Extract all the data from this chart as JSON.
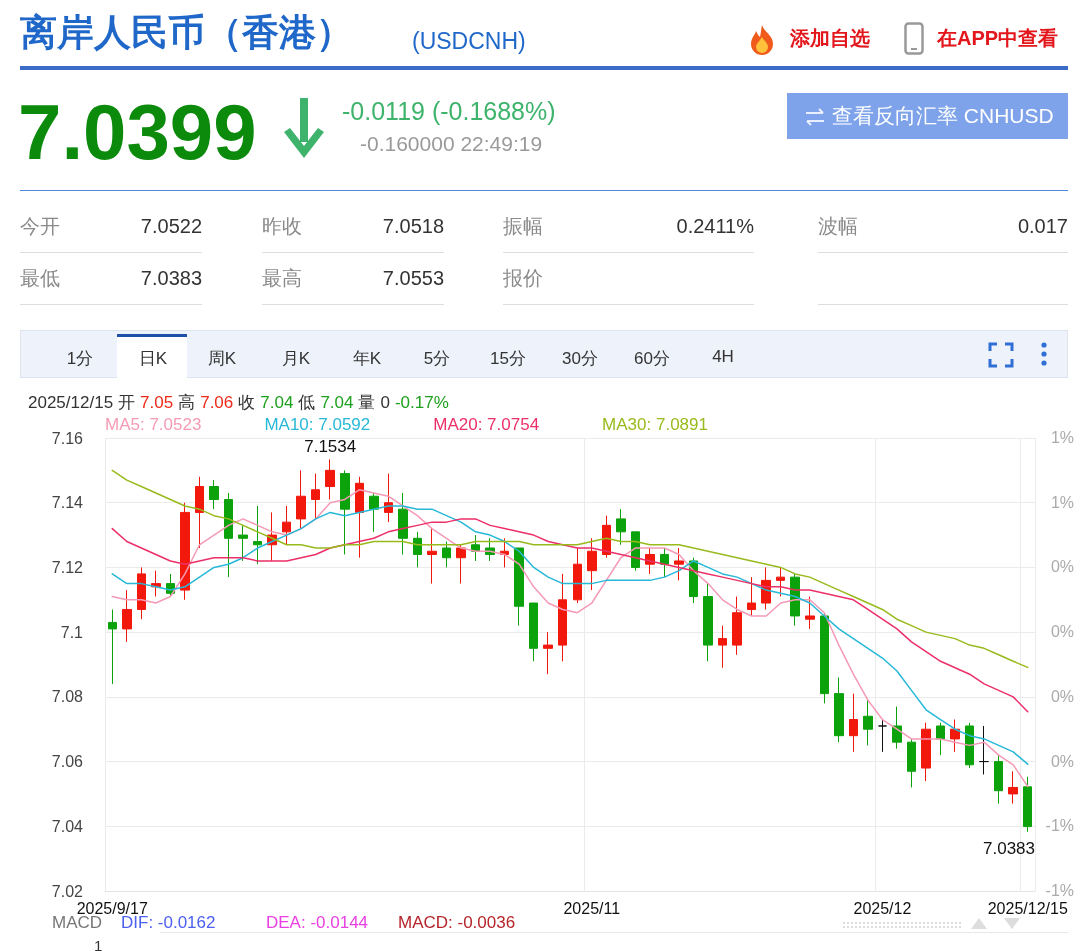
{
  "chart_data": {
    "type": "candlestick",
    "title": "离岸人民币（香港）",
    "subtitle": "(USDCNH)",
    "categories": [
      "2025/9/17",
      null,
      null,
      null,
      null,
      null,
      null,
      null,
      null,
      null,
      null,
      null,
      null,
      null,
      null,
      null,
      null,
      null,
      null,
      null,
      null,
      null,
      null,
      null,
      null,
      null,
      null,
      null,
      null,
      null,
      null,
      null,
      null,
      "2025/11",
      null,
      null,
      null,
      null,
      null,
      null,
      null,
      null,
      null,
      null,
      null,
      null,
      null,
      null,
      null,
      null,
      null,
      null,
      null,
      "2025/12",
      null,
      null,
      null,
      null,
      null,
      null,
      null,
      null,
      null,
      "2025/12/15"
    ],
    "ohlc": [
      [
        7.103,
        7.107,
        7.084,
        7.101
      ],
      [
        7.101,
        7.113,
        7.097,
        7.107
      ],
      [
        7.107,
        7.12,
        7.104,
        7.118
      ],
      [
        7.114,
        7.119,
        7.111,
        7.115
      ],
      [
        7.115,
        7.118,
        7.111,
        7.112
      ],
      [
        7.113,
        7.14,
        7.11,
        7.137
      ],
      [
        7.137,
        7.148,
        7.126,
        7.145
      ],
      [
        7.145,
        7.147,
        7.138,
        7.141
      ],
      [
        7.141,
        7.143,
        7.117,
        7.129
      ],
      [
        7.13,
        7.133,
        7.122,
        7.129
      ],
      [
        7.128,
        7.139,
        7.121,
        7.127
      ],
      [
        7.127,
        7.137,
        7.122,
        7.13
      ],
      [
        7.131,
        7.139,
        7.127,
        7.134
      ],
      [
        7.135,
        7.15,
        7.132,
        7.142
      ],
      [
        7.141,
        7.149,
        7.135,
        7.144
      ],
      [
        7.145,
        7.1534,
        7.141,
        7.15
      ],
      [
        7.149,
        7.15,
        7.124,
        7.138
      ],
      [
        7.137,
        7.148,
        7.123,
        7.146
      ],
      [
        7.142,
        7.143,
        7.131,
        7.138
      ],
      [
        7.137,
        7.149,
        7.134,
        7.14
      ],
      [
        7.138,
        7.143,
        7.124,
        7.129
      ],
      [
        7.129,
        7.131,
        7.12,
        7.124
      ],
      [
        7.124,
        7.132,
        7.115,
        7.125
      ],
      [
        7.126,
        7.128,
        7.12,
        7.123
      ],
      [
        7.123,
        7.127,
        7.115,
        7.126
      ],
      [
        7.127,
        7.13,
        7.122,
        7.125
      ],
      [
        7.126,
        7.129,
        7.122,
        7.124
      ],
      [
        7.124,
        7.129,
        7.12,
        7.125
      ],
      [
        7.126,
        7.126,
        7.102,
        7.108
      ],
      [
        7.109,
        7.109,
        7.091,
        7.095
      ],
      [
        7.095,
        7.1,
        7.087,
        7.096
      ],
      [
        7.096,
        7.118,
        7.091,
        7.11
      ],
      [
        7.11,
        7.126,
        7.109,
        7.121
      ],
      [
        7.119,
        7.129,
        7.113,
        7.125
      ],
      [
        7.124,
        7.136,
        7.123,
        7.133
      ],
      [
        7.135,
        7.138,
        7.127,
        7.131
      ],
      [
        7.131,
        7.131,
        7.119,
        7.12
      ],
      [
        7.121,
        7.126,
        7.118,
        7.124
      ],
      [
        7.124,
        7.126,
        7.117,
        7.121
      ],
      [
        7.121,
        7.126,
        7.116,
        7.122
      ],
      [
        7.122,
        7.123,
        7.109,
        7.111
      ],
      [
        7.111,
        7.115,
        7.091,
        7.096
      ],
      [
        7.096,
        7.102,
        7.089,
        7.098
      ],
      [
        7.096,
        7.111,
        7.093,
        7.106
      ],
      [
        7.107,
        7.117,
        7.105,
        7.109
      ],
      [
        7.109,
        7.12,
        7.107,
        7.116
      ],
      [
        7.116,
        7.12,
        7.111,
        7.117
      ],
      [
        7.117,
        7.118,
        7.102,
        7.105
      ],
      [
        7.104,
        7.111,
        7.101,
        7.105
      ],
      [
        7.105,
        7.106,
        7.078,
        7.081
      ],
      [
        7.081,
        7.086,
        7.066,
        7.068
      ],
      [
        7.068,
        7.081,
        7.063,
        7.073
      ],
      [
        7.074,
        7.079,
        7.065,
        7.07
      ],
      [
        7.071,
        7.073,
        7.063,
        7.071
      ],
      [
        7.071,
        7.077,
        7.064,
        7.066
      ],
      [
        7.066,
        7.067,
        7.052,
        7.057
      ],
      [
        7.058,
        7.072,
        7.054,
        7.07
      ],
      [
        7.071,
        7.072,
        7.062,
        7.067
      ],
      [
        7.067,
        7.073,
        7.063,
        7.07
      ],
      [
        7.071,
        7.072,
        7.058,
        7.059
      ],
      [
        7.06,
        7.071,
        7.056,
        7.06
      ],
      [
        7.06,
        7.062,
        7.047,
        7.051
      ],
      [
        7.05,
        7.057,
        7.047,
        7.052
      ],
      [
        7.0522,
        7.0553,
        7.0383,
        7.0399
      ]
    ],
    "colors": [
      "#0ba20b",
      "#f2180c",
      "#f2180c",
      "#f2180c",
      "#0ba20b",
      "#f2180c",
      "#f2180c",
      "#0ba20b",
      "#0ba20b",
      "#0ba20b",
      "#0ba20b",
      "#f2180c",
      "#f2180c",
      "#f2180c",
      "#f2180c",
      "#f2180c",
      "#0ba20b",
      "#f2180c",
      "#0ba20b",
      "#f2180c",
      "#0ba20b",
      "#0ba20b",
      "#f2180c",
      "#0ba20b",
      "#f2180c",
      "#0ba20b",
      "#0ba20b",
      "#f2180c",
      "#0ba20b",
      "#0ba20b",
      "#f2180c",
      "#f2180c",
      "#f2180c",
      "#f2180c",
      "#f2180c",
      "#0ba20b",
      "#0ba20b",
      "#f2180c",
      "#0ba20b",
      "#f2180c",
      "#0ba20b",
      "#0ba20b",
      "#f2180c",
      "#f2180c",
      "#f2180c",
      "#f2180c",
      "#f2180c",
      "#0ba20b",
      "#f2180c",
      "#0ba20b",
      "#0ba20b",
      "#f2180c",
      "#0ba20b",
      "#111111",
      "#0ba20b",
      "#0ba20b",
      "#f2180c",
      "#0ba20b",
      "#f2180c",
      "#0ba20b",
      "#111111",
      "#0ba20b",
      "#f2180c",
      "#0ba20b"
    ],
    "series": [
      {
        "name": "MA5: 7.0523",
        "type": "line",
        "color": "#f59ab5",
        "values": [
          7.111,
          7.11,
          7.11,
          7.109,
          7.111,
          7.118,
          7.127,
          7.13,
          7.133,
          7.135,
          7.133,
          7.131,
          7.13,
          7.132,
          7.135,
          7.14,
          7.141,
          7.144,
          7.143,
          7.142,
          7.139,
          7.136,
          7.132,
          7.129,
          7.126,
          7.125,
          7.125,
          7.124,
          7.121,
          7.114,
          7.109,
          7.107,
          7.106,
          7.109,
          7.116,
          7.123,
          7.126,
          7.126,
          7.126,
          7.124,
          7.119,
          7.115,
          7.11,
          7.107,
          7.105,
          7.105,
          7.109,
          7.11,
          7.11,
          7.106,
          7.096,
          7.087,
          7.079,
          7.073,
          7.07,
          7.067,
          7.067,
          7.067,
          7.066,
          7.065,
          7.066,
          7.062,
          7.059,
          7.0523
        ]
      },
      {
        "name": "MA10: 7.0592",
        "type": "line",
        "color": "#27b8d8",
        "values": [
          7.118,
          7.115,
          7.115,
          7.114,
          7.113,
          7.114,
          7.117,
          7.12,
          7.121,
          7.123,
          7.126,
          7.128,
          7.13,
          7.132,
          7.135,
          7.137,
          7.136,
          7.137,
          7.138,
          7.139,
          7.139,
          7.138,
          7.138,
          7.136,
          7.134,
          7.131,
          7.13,
          7.128,
          7.125,
          7.12,
          7.117,
          7.115,
          7.115,
          7.115,
          7.116,
          7.116,
          7.116,
          7.116,
          7.117,
          7.119,
          7.122,
          7.12,
          7.118,
          7.117,
          7.115,
          7.113,
          7.112,
          7.111,
          7.109,
          7.105,
          7.101,
          7.098,
          7.095,
          7.092,
          7.088,
          7.082,
          7.076,
          7.073,
          7.07,
          7.068,
          7.067,
          7.065,
          7.063,
          7.0592
        ]
      },
      {
        "name": "MA20: 7.0754",
        "type": "line",
        "color": "#ec2f68",
        "values": [
          7.132,
          7.128,
          7.126,
          7.124,
          7.122,
          7.121,
          7.122,
          7.123,
          7.123,
          7.123,
          7.122,
          7.122,
          7.122,
          7.123,
          7.124,
          7.126,
          7.127,
          7.128,
          7.129,
          7.131,
          7.132,
          7.133,
          7.134,
          7.134,
          7.135,
          7.135,
          7.133,
          7.132,
          7.131,
          7.13,
          7.128,
          7.127,
          7.126,
          7.126,
          7.125,
          7.124,
          7.123,
          7.122,
          7.121,
          7.12,
          7.119,
          7.118,
          7.117,
          7.116,
          7.115,
          7.114,
          7.114,
          7.113,
          7.113,
          7.112,
          7.111,
          7.11,
          7.107,
          7.104,
          7.101,
          7.097,
          7.094,
          7.091,
          7.089,
          7.087,
          7.084,
          7.082,
          7.08,
          7.0754
        ]
      },
      {
        "name": "MA30: 7.0891",
        "type": "line",
        "color": "#98ba1c",
        "values": [
          7.15,
          7.147,
          7.145,
          7.143,
          7.141,
          7.139,
          7.138,
          7.136,
          7.135,
          7.133,
          7.131,
          7.129,
          7.127,
          7.127,
          7.126,
          7.126,
          7.127,
          7.127,
          7.128,
          7.128,
          7.128,
          7.127,
          7.127,
          7.127,
          7.127,
          7.128,
          7.128,
          7.128,
          7.128,
          7.127,
          7.127,
          7.127,
          7.127,
          7.128,
          7.129,
          7.128,
          7.128,
          7.127,
          7.127,
          7.127,
          7.126,
          7.125,
          7.124,
          7.123,
          7.122,
          7.121,
          7.12,
          7.118,
          7.117,
          7.115,
          7.113,
          7.111,
          7.109,
          7.107,
          7.104,
          7.102,
          7.1,
          7.099,
          7.098,
          7.096,
          7.095,
          7.093,
          7.091,
          7.0891
        ]
      }
    ],
    "ylim": [
      7.02,
      7.16
    ],
    "yticks": [
      7.02,
      7.04,
      7.06,
      7.08,
      7.1,
      7.12,
      7.14,
      7.16
    ],
    "grid": true,
    "legend": "top left",
    "marker": "none",
    "line_style": "solid",
    "annotations": [
      "添加自选",
      "在APP中查看",
      "7.0399",
      "-0.0119 (-0.1688%)",
      "-0.160000 22:49:19",
      "查看反向汇率 CNHUSD",
      "今开",
      "7.0522",
      "昨收",
      "7.0518",
      "振幅",
      "0.2411%",
      "波幅",
      "0.017",
      "最低",
      "7.0383",
      "最高",
      "7.0553",
      "报价",
      "1分",
      "日K",
      "周K",
      "月K",
      "年K",
      "5分",
      "15分",
      "30分",
      "60分",
      "4H",
      "2025/12/15",
      "开",
      "7.05",
      "高",
      "7.06",
      "收",
      "7.04",
      "低",
      "7.04",
      "量",
      "0",
      "-0.17%",
      "MACD",
      "DIF: -0.0162",
      "DEA: -0.0144",
      "MACD: -0.0036",
      "1",
      {
        "text": "7.1534",
        "y": 7.1534
      },
      "7.0383",
      "1%",
      "1%",
      "0%",
      "0%",
      "0%",
      "0%",
      "-1%",
      "-1%"
    ]
  }
}
